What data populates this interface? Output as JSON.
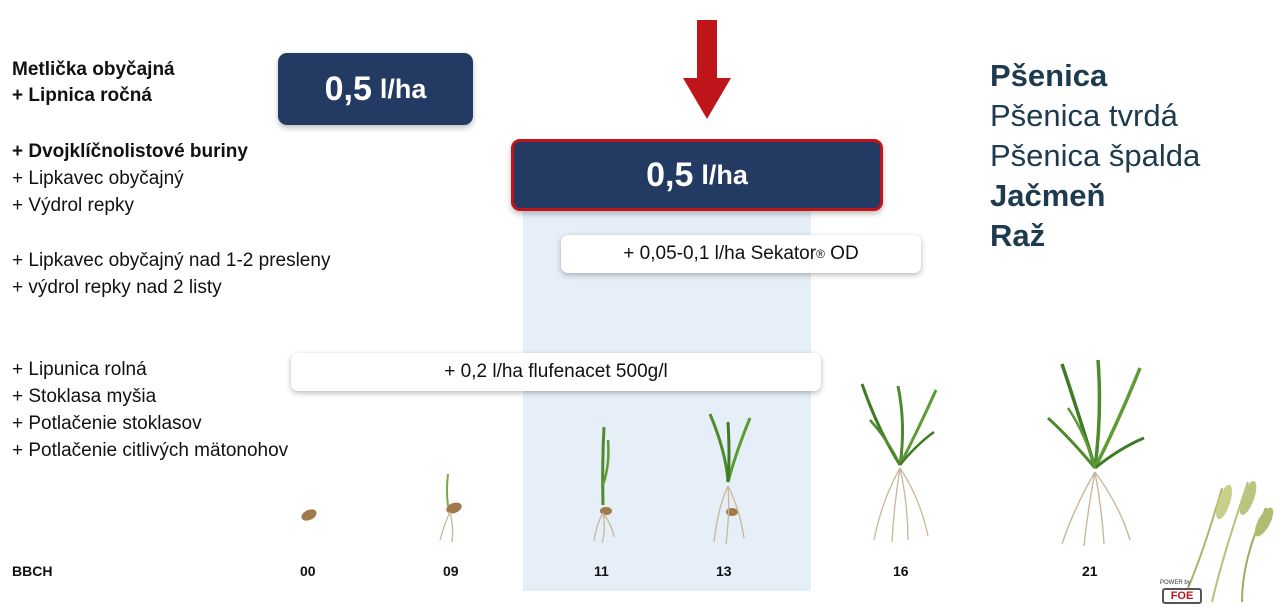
{
  "left_labels": {
    "group1": [
      "Metlička obyčajná",
      "+ Lipnica ročná"
    ],
    "group2_bold": "+ Dvojklíčnolistové buriny",
    "group2": [
      "+ Lipkavec obyčajný",
      "+ Výdrol repky"
    ],
    "group3": [
      "+ Lipkavec obyčajný nad 1-2 presleny",
      "+ výdrol repky nad 2 listy"
    ],
    "group4": [
      "+ Lipunica rolná",
      "+ Stoklasa myšia",
      "+ Potlačenie stoklasov",
      "+ Potlačenie citlivých mätonohov"
    ]
  },
  "dose_early": {
    "value": "0,5",
    "unit": "l/ha"
  },
  "dose_main": {
    "value": "0,5",
    "unit": "l/ha"
  },
  "sekator_pill": {
    "prefix": "+ 0,05-0,1 l/ha Sekator",
    "reg": "®",
    "suffix": " OD"
  },
  "flufenacet_pill": "+ 0,2 l/ha flufenacet 500g/l",
  "crops": [
    {
      "name": "Pšenica",
      "bold": true
    },
    {
      "name": "Pšenica tvrdá",
      "bold": false
    },
    {
      "name": "Pšenica špalda",
      "bold": false
    },
    {
      "name": "Jačmeň",
      "bold": true
    },
    {
      "name": "Raž",
      "bold": true
    }
  ],
  "bbch": {
    "label": "BBCH",
    "stages": [
      "00",
      "09",
      "11",
      "13",
      "16",
      "21"
    ]
  },
  "logo": {
    "power": "POWER by",
    "text": "FOE"
  },
  "colors": {
    "navy": "#233a63",
    "red": "#c0141b",
    "highlight": "#e6eef8",
    "crop_text": "#1e3a4e"
  }
}
